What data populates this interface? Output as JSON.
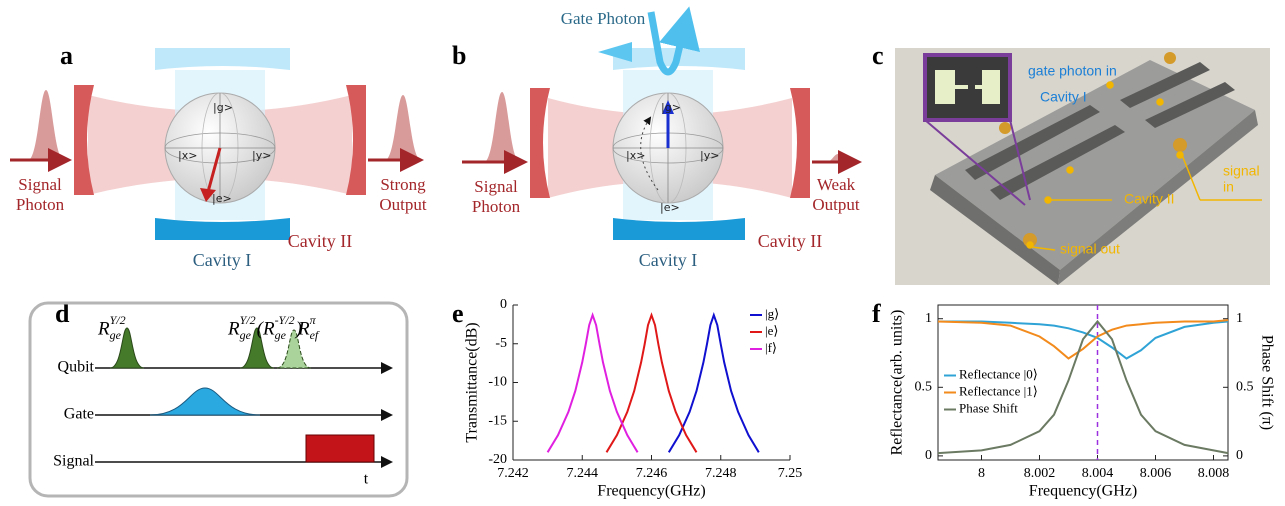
{
  "panel_labels": [
    "a",
    "b",
    "c",
    "d",
    "e",
    "f"
  ],
  "diagram_a": {
    "input": [
      "Signal",
      "Photon"
    ],
    "output": [
      "Strong",
      "Output"
    ],
    "cavity_1": "Cavity I",
    "cavity_2": "Cavity II",
    "kets": [
      "|g>",
      "|e>",
      "|x>",
      "|y>"
    ]
  },
  "diagram_b": {
    "gate": "Gate Photon",
    "input": [
      "Signal",
      "Photon"
    ],
    "output": [
      "Weak",
      "Output"
    ],
    "cavity_1": "Cavity I",
    "cavity_2": "Cavity II",
    "kets": [
      "|g>",
      "|e>",
      "|x>",
      "|y>"
    ]
  },
  "photo_c": {
    "labels": [
      "gate photon in",
      "Cavity I",
      "signal",
      "in",
      "Cavity II",
      "signal out"
    ]
  },
  "diagram_d": {
    "rows": [
      "Qubit",
      "Gate",
      "Signal"
    ],
    "time": "t",
    "pulses": [
      [
        {
          "text": "R"
        },
        {
          "sup": "Y/2",
          "sub": "ge"
        }
      ],
      [
        {
          "text": "R"
        },
        {
          "sup": "Y/2",
          "sub": "ge"
        },
        {
          "text": "(R"
        },
        {
          "sup": "-Y/2",
          "sub": "ge"
        },
        {
          "text": ")"
        }
      ],
      [
        {
          "text": "R"
        },
        {
          "sup": "π",
          "sub": "ef"
        }
      ]
    ]
  },
  "chart_data": [
    {
      "type": "line",
      "xlabel": "Frequency(GHz)",
      "ylabel": "Transmittance(dB)",
      "xlim": [
        7.242,
        7.25
      ],
      "ylim": [
        -20,
        0
      ],
      "xticks": [
        7.242,
        7.244,
        7.246,
        7.248,
        7.25
      ],
      "yticks": [
        0,
        -5,
        -10,
        -15,
        -20
      ],
      "box": false,
      "legend": "upper right",
      "series": [
        {
          "name": "|g⟩",
          "color": "#1010d0",
          "x": [
            7.2465,
            7.2468,
            7.2471,
            7.2473,
            7.2475,
            7.2476,
            7.2477,
            7.2478,
            7.2479,
            7.248,
            7.2481,
            7.2483,
            7.2485,
            7.2488,
            7.2491
          ],
          "values": [
            -19,
            -16.8,
            -13.8,
            -11.1,
            -7.4,
            -5.1,
            -2.6,
            -1.3,
            -2.6,
            -5.1,
            -7.4,
            -11.1,
            -13.8,
            -16.8,
            -19
          ]
        },
        {
          "name": "|e⟩",
          "color": "#e01818",
          "x": [
            7.2447,
            7.245,
            7.2453,
            7.2455,
            7.2457,
            7.2458,
            7.2459,
            7.246,
            7.2461,
            7.2462,
            7.2463,
            7.2465,
            7.2467,
            7.247,
            7.2473
          ],
          "values": [
            -19,
            -16.8,
            -13.8,
            -11.1,
            -7.4,
            -5.1,
            -2.6,
            -1.3,
            -2.6,
            -5.1,
            -7.4,
            -11.1,
            -13.8,
            -16.8,
            -19
          ]
        },
        {
          "name": "|f⟩",
          "color": "#e020e0",
          "x": [
            7.243,
            7.2433,
            7.2436,
            7.2438,
            7.244,
            7.2441,
            7.2442,
            7.2443,
            7.2444,
            7.2445,
            7.2446,
            7.2448,
            7.245,
            7.2453,
            7.2456
          ],
          "values": [
            -19,
            -16.8,
            -13.8,
            -11.1,
            -7.4,
            -5.1,
            -2.6,
            -1.3,
            -2.6,
            -5.1,
            -7.4,
            -11.1,
            -13.8,
            -16.8,
            -19
          ]
        }
      ]
    },
    {
      "type": "line",
      "xlabel": "Frequency(GHz)",
      "ylabel": "Reflectance(arb. units)",
      "y2label": "Phase Shift  (π)",
      "xlim": [
        7.9985,
        8.0085
      ],
      "ylim": [
        -0.03,
        1.1
      ],
      "y2lim": [
        -0.03,
        1.1
      ],
      "xticks": [
        8,
        8.002,
        8.004,
        8.006,
        8.008
      ],
      "yticks": [
        0,
        0.5,
        1
      ],
      "y2ticks": [
        0,
        0.5,
        1
      ],
      "box": true,
      "legend": "center left",
      "vline": 8.004,
      "vline_color": "#9b30e0",
      "series": [
        {
          "name": "Reflectance |0⟩",
          "color": "#2fa3d6",
          "x": [
            7.9985,
            8,
            8.001,
            8.002,
            8.0025,
            8.003,
            8.0035,
            8.004,
            8.0045,
            8.005,
            8.0055,
            8.006,
            8.007,
            8.008,
            8.0085
          ],
          "values": [
            0.98,
            0.98,
            0.97,
            0.96,
            0.95,
            0.93,
            0.9,
            0.86,
            0.79,
            0.71,
            0.77,
            0.86,
            0.94,
            0.97,
            0.98
          ]
        },
        {
          "name": "Reflectance |1⟩",
          "color": "#f28a1c",
          "x": [
            7.9985,
            8,
            8.001,
            8.002,
            8.0025,
            8.003,
            8.0035,
            8.004,
            8.0045,
            8.005,
            8.0055,
            8.006,
            8.007,
            8.008,
            8.0085
          ],
          "values": [
            0.98,
            0.97,
            0.95,
            0.87,
            0.8,
            0.71,
            0.78,
            0.87,
            0.92,
            0.95,
            0.96,
            0.97,
            0.98,
            0.98,
            0.99
          ]
        },
        {
          "name": "Phase Shift",
          "color": "#6b7a62",
          "axis": "y2",
          "x": [
            7.9985,
            8,
            8.001,
            8.002,
            8.0025,
            8.003,
            8.0035,
            8.004,
            8.0045,
            8.005,
            8.0055,
            8.006,
            8.007,
            8.008,
            8.0085
          ],
          "values": [
            0.02,
            0.04,
            0.08,
            0.18,
            0.3,
            0.55,
            0.85,
            0.98,
            0.85,
            0.55,
            0.3,
            0.18,
            0.08,
            0.04,
            0.02
          ]
        }
      ]
    }
  ]
}
